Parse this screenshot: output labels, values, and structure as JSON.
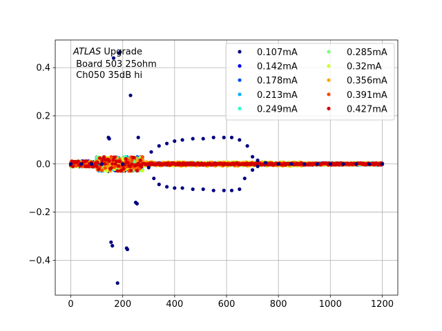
{
  "chart_data": {
    "type": "scatter",
    "annotation": {
      "lines": [
        {
          "italic": "ATLAS",
          "text": " Upgrade"
        },
        {
          "italic": "",
          "text": " Board 503 25ohm"
        },
        {
          "italic": "",
          "text": " Ch050 35dB hi"
        }
      ]
    },
    "xlim": [
      -60,
      1260
    ],
    "ylim": [
      -0.545,
      0.515
    ],
    "xticks": [
      0,
      200,
      400,
      600,
      800,
      1000,
      1200
    ],
    "yticks": [
      -0.4,
      -0.2,
      0.0,
      0.2,
      0.4
    ],
    "ytick_labels": [
      "−0.4",
      "−0.2",
      "0.0",
      "0.2",
      "0.4"
    ],
    "grid": true,
    "legend": {
      "placement": "top-right",
      "columns": 2
    },
    "series": [
      {
        "name": "0.107mA",
        "color": "#00007f"
      },
      {
        "name": "0.142mA",
        "color": "#0000f1"
      },
      {
        "name": "0.178mA",
        "color": "#004cff"
      },
      {
        "name": "0.213mA",
        "color": "#00b0ff"
      },
      {
        "name": "0.249mA",
        "color": "#29ffce"
      },
      {
        "name": "0.285mA",
        "color": "#7dff7a"
      },
      {
        "name": "0.32mA",
        "color": "#ceff29"
      },
      {
        "name": "0.356mA",
        "color": "#ffa700"
      },
      {
        "name": "0.391mA",
        "color": "#ff4800"
      },
      {
        "name": "0.427mA",
        "color": "#d40000"
      }
    ],
    "notable_points": {
      "series": "0.107mA",
      "x": [
        0,
        40,
        80,
        120,
        145,
        148,
        155,
        160,
        165,
        180,
        185,
        190,
        200,
        215,
        218,
        230,
        250,
        255,
        260,
        300,
        310,
        340,
        370,
        400,
        430,
        470,
        510,
        550,
        590,
        620,
        650,
        680,
        700,
        720,
        750,
        800,
        850,
        900,
        950,
        1000,
        1050,
        1100,
        1150,
        1200,
        320,
        340,
        370,
        400,
        430,
        470,
        510,
        550,
        590,
        620,
        650,
        670,
        700,
        720
      ],
      "y": [
        0,
        0,
        0,
        0,
        0.11,
        0.105,
        -0.325,
        -0.34,
        0.44,
        -0.495,
        0.46,
        0.465,
        0.0,
        -0.35,
        -0.355,
        0.285,
        -0.16,
        -0.165,
        0.11,
        -0.015,
        0.05,
        0.075,
        0.085,
        0.095,
        0.1,
        0.105,
        0.105,
        0.11,
        0.11,
        0.11,
        0.1,
        0.075,
        0.03,
        0.015,
        0.005,
        0.0,
        0.0,
        0.0,
        0.0,
        0.0,
        0.0,
        0.0,
        0.0,
        0.0,
        -0.06,
        -0.085,
        -0.095,
        -0.1,
        -0.1,
        -0.105,
        -0.105,
        -0.11,
        -0.11,
        -0.11,
        -0.105,
        -0.06,
        -0.025,
        -0.01
      ]
    }
  }
}
